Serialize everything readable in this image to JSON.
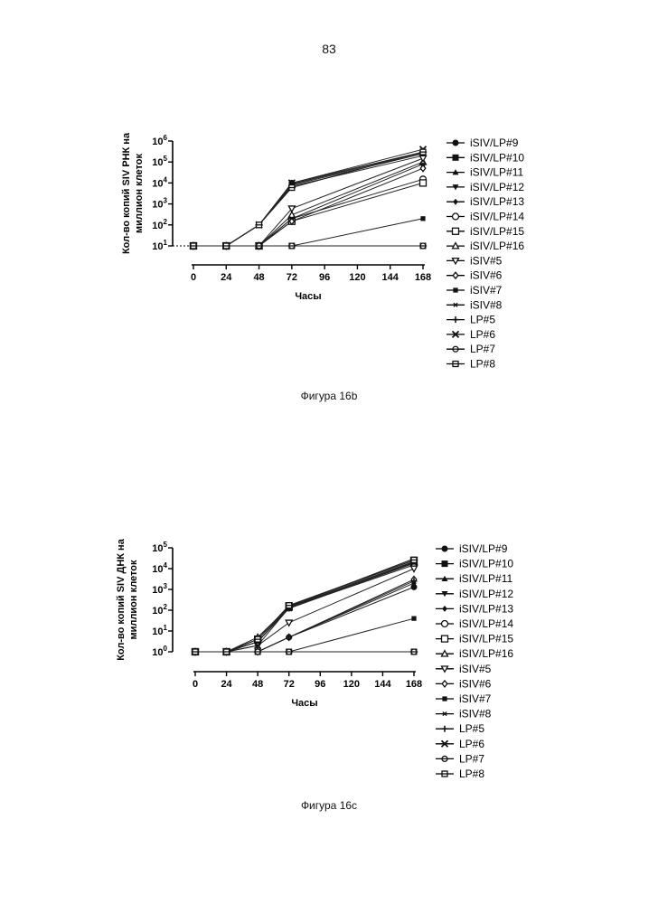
{
  "page": {
    "number": "83"
  },
  "chart_data": [
    {
      "type": "line",
      "caption": "Фигура 16b",
      "title": "",
      "xlabel": "Часы",
      "ylabel": "Кол-во копий SIV РНК на миллион клеток",
      "ylabel_lines": [
        "Кол-во копий SIV РНК на",
        "миллион клеток"
      ],
      "x": [
        0,
        24,
        48,
        72,
        168
      ],
      "xticks": [
        "0",
        "24",
        "48",
        "72",
        "96",
        "120",
        "144",
        "168"
      ],
      "xtick_values": [
        0,
        24,
        48,
        72,
        96,
        120,
        144,
        168
      ],
      "yscale": "log",
      "ylim": [
        10,
        1000000
      ],
      "yticks": [
        {
          "base": "10",
          "exp": "1"
        },
        {
          "base": "10",
          "exp": "2"
        },
        {
          "base": "10",
          "exp": "3"
        },
        {
          "base": "10",
          "exp": "4"
        },
        {
          "base": "10",
          "exp": "5"
        },
        {
          "base": "10",
          "exp": "6"
        }
      ],
      "ytick_values": [
        10,
        100,
        1000,
        10000,
        100000,
        1000000
      ],
      "baseline": "dotted",
      "legend": "right",
      "series": [
        {
          "name": "iSIV/LP#9",
          "marker": "circle-filled",
          "values": [
            10,
            10,
            100,
            10000,
            300000
          ]
        },
        {
          "name": "iSIV/LP#10",
          "marker": "square-filled",
          "values": [
            10,
            10,
            10,
            10,
            10
          ]
        },
        {
          "name": "iSIV/LP#11",
          "marker": "triangle-filled",
          "values": [
            10,
            10,
            100,
            8000,
            250000
          ]
        },
        {
          "name": "iSIV/LP#12",
          "marker": "tri-down-filled",
          "values": [
            10,
            10,
            100,
            7000,
            200000
          ]
        },
        {
          "name": "iSIV/LP#13",
          "marker": "diamond-filled",
          "values": [
            10,
            10,
            100,
            9000,
            280000
          ]
        },
        {
          "name": "iSIV/LP#14",
          "marker": "circle-open",
          "values": [
            10,
            10,
            10,
            200,
            15000
          ]
        },
        {
          "name": "iSIV/LP#15",
          "marker": "square-open",
          "values": [
            10,
            10,
            10,
            150,
            10000
          ]
        },
        {
          "name": "iSIV/LP#16",
          "marker": "triangle-open",
          "values": [
            10,
            10,
            10,
            300,
            100000
          ]
        },
        {
          "name": "iSIV#5",
          "marker": "tri-down-open",
          "values": [
            10,
            10,
            10,
            600,
            150000
          ]
        },
        {
          "name": "iSIV#6",
          "marker": "diamond-open",
          "values": [
            10,
            10,
            10,
            150,
            50000
          ]
        },
        {
          "name": "iSIV#7",
          "marker": "square-small",
          "values": [
            10,
            10,
            10,
            10,
            200
          ]
        },
        {
          "name": "iSIV#8",
          "marker": "star",
          "values": [
            10,
            10,
            10,
            200,
            80000
          ]
        },
        {
          "name": "LP#5",
          "marker": "plus",
          "values": [
            10,
            10,
            10,
            10,
            10
          ]
        },
        {
          "name": "LP#6",
          "marker": "cross",
          "values": [
            10,
            10,
            100,
            10000,
            400000
          ]
        },
        {
          "name": "LP#7",
          "marker": "circle-bar",
          "values": [
            10,
            10,
            10,
            10,
            10
          ]
        },
        {
          "name": "LP#8",
          "marker": "square-bar",
          "values": [
            10,
            10,
            100,
            6000,
            300000
          ]
        }
      ]
    },
    {
      "type": "line",
      "caption": "Фигура 16c",
      "title": "",
      "xlabel": "Часы",
      "ylabel": "Кол-во копий SIV ДНК на миллион клеток",
      "ylabel_lines": [
        "Кол-во копий SIV ДНК на",
        "миллион клеток"
      ],
      "x": [
        0,
        24,
        48,
        72,
        168
      ],
      "xticks": [
        "0",
        "24",
        "48",
        "72",
        "96",
        "120",
        "144",
        "168"
      ],
      "xtick_values": [
        0,
        24,
        48,
        72,
        96,
        120,
        144,
        168
      ],
      "yscale": "log",
      "ylim": [
        1,
        100000
      ],
      "yticks": [
        {
          "base": "10",
          "exp": "0"
        },
        {
          "base": "10",
          "exp": "1"
        },
        {
          "base": "10",
          "exp": "2"
        },
        {
          "base": "10",
          "exp": "3"
        },
        {
          "base": "10",
          "exp": "4"
        },
        {
          "base": "10",
          "exp": "5"
        }
      ],
      "ytick_values": [
        1,
        10,
        100,
        1000,
        10000,
        100000
      ],
      "baseline": "none",
      "legend": "right",
      "series": [
        {
          "name": "iSIV/LP#9",
          "marker": "circle-filled",
          "values": [
            1,
            1,
            1,
            5,
            1300
          ]
        },
        {
          "name": "iSIV/LP#10",
          "marker": "square-filled",
          "values": [
            1,
            1,
            1,
            1,
            1
          ]
        },
        {
          "name": "iSIV/LP#11",
          "marker": "triangle-filled",
          "values": [
            1,
            1,
            4,
            150,
            20000
          ]
        },
        {
          "name": "iSIV/LP#12",
          "marker": "tri-down-filled",
          "values": [
            1,
            1,
            3,
            120,
            18000
          ]
        },
        {
          "name": "iSIV/LP#13",
          "marker": "diamond-filled",
          "values": [
            1,
            1,
            1,
            5,
            2000
          ]
        },
        {
          "name": "iSIV/LP#14",
          "marker": "circle-open",
          "values": [
            1,
            1,
            3,
            130,
            15000
          ]
        },
        {
          "name": "iSIV/LP#15",
          "marker": "square-open",
          "values": [
            1,
            1,
            4,
            160,
            25000
          ]
        },
        {
          "name": "iSIV/LP#16",
          "marker": "triangle-open",
          "values": [
            1,
            1,
            5,
            140,
            22000
          ]
        },
        {
          "name": "iSIV#5",
          "marker": "tri-down-open",
          "values": [
            1,
            1,
            2,
            25,
            10000
          ]
        },
        {
          "name": "iSIV#6",
          "marker": "diamond-open",
          "values": [
            1,
            1,
            1,
            5,
            3000
          ]
        },
        {
          "name": "iSIV#7",
          "marker": "square-small",
          "values": [
            1,
            1,
            1,
            1,
            40
          ]
        },
        {
          "name": "iSIV#8",
          "marker": "star",
          "values": [
            1,
            1,
            3,
            150,
            30000
          ]
        },
        {
          "name": "LP#5",
          "marker": "plus",
          "values": [
            1,
            1,
            1,
            5,
            2500
          ]
        },
        {
          "name": "LP#6",
          "marker": "cross",
          "values": [
            1,
            1,
            2,
            130,
            20000
          ]
        },
        {
          "name": "LP#7",
          "marker": "circle-bar",
          "values": [
            1,
            1,
            1,
            1,
            1
          ]
        },
        {
          "name": "LP#8",
          "marker": "square-bar",
          "values": [
            1,
            1,
            4,
            170,
            26000
          ]
        }
      ]
    }
  ]
}
